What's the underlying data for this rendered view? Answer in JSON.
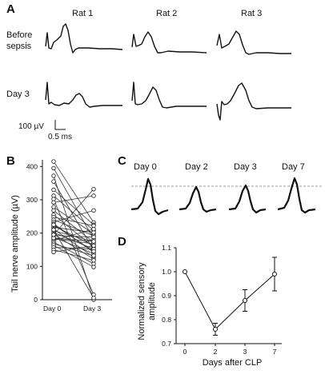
{
  "panels": {
    "a": {
      "letter": "A",
      "rats": [
        "Rat 1",
        "Rat 2",
        "Rat 3"
      ],
      "rows": [
        {
          "line1": "Before",
          "line2": "sepsis"
        },
        {
          "line1": "Day 3",
          "line2": ""
        }
      ],
      "scale_voltage": "100 µV",
      "scale_time": "0.5 ms"
    },
    "b": {
      "letter": "B",
      "ylabel": "Tail nerve amplitude (µV)",
      "yticks": [
        0,
        100,
        200,
        300,
        400
      ],
      "categories": [
        "Day 0",
        "Day 3"
      ]
    },
    "c": {
      "letter": "C",
      "days": [
        "Day 0",
        "Day 2",
        "Day 3",
        "Day 7"
      ]
    },
    "d": {
      "letter": "D",
      "ylabel_line1": "Normalized sensory",
      "ylabel_line2": "amplitude",
      "xlabel": "Days after CLP",
      "yticks": [
        "0.7",
        "0.8",
        "0.9",
        "1.0",
        "1.1"
      ],
      "xticks": [
        "0",
        "2",
        "3",
        "7"
      ]
    }
  },
  "chart_data": [
    {
      "type": "line",
      "panel": "B",
      "ylabel": "Tail nerve amplitude (µV)",
      "categories": [
        "Day 0",
        "Day 3"
      ],
      "ylim": [
        0,
        420
      ],
      "pairs": [
        [
          415,
          232
        ],
        [
          395,
          182
        ],
        [
          372,
          0
        ],
        [
          355,
          148
        ],
        [
          330,
          225
        ],
        [
          312,
          208
        ],
        [
          302,
          15
        ],
        [
          292,
          312
        ],
        [
          278,
          198
        ],
        [
          268,
          172
        ],
        [
          255,
          158
        ],
        [
          248,
          222
        ],
        [
          240,
          192
        ],
        [
          233,
          268
        ],
        [
          228,
          142
        ],
        [
          222,
          162
        ],
        [
          217,
          202
        ],
        [
          212,
          128
        ],
        [
          207,
          175
        ],
        [
          202,
          152
        ],
        [
          197,
          122
        ],
        [
          193,
          188
        ],
        [
          188,
          138
        ],
        [
          183,
          168
        ],
        [
          178,
          212
        ],
        [
          173,
          108
        ],
        [
          168,
          132
        ],
        [
          163,
          98
        ],
        [
          157,
          152
        ],
        [
          150,
          118
        ],
        [
          143,
          162
        ],
        [
          185,
          175
        ],
        [
          195,
          332
        ],
        [
          210,
          5
        ],
        [
          225,
          145
        ]
      ]
    },
    {
      "type": "line",
      "panel": "D",
      "ylabel": "Normalized sensory amplitude",
      "xlabel": "Days after CLP",
      "x": [
        0,
        2,
        3,
        7
      ],
      "y": [
        1.0,
        0.76,
        0.88,
        0.99
      ],
      "error": [
        0,
        0.025,
        0.045,
        0.07
      ],
      "ylim": [
        0.7,
        1.1
      ]
    }
  ]
}
